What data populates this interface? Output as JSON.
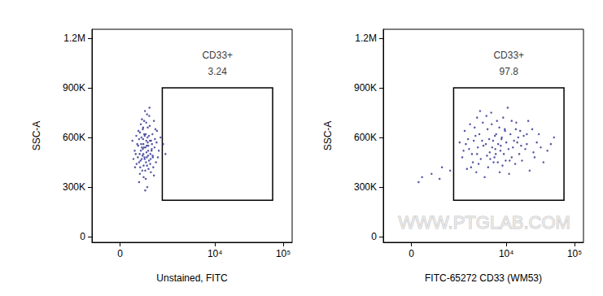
{
  "chart_data": [
    {
      "type": "scatter",
      "x_label": "Unstained, FITC",
      "y_label": "SSC-A",
      "log": "x",
      "color": "#2b2d8f",
      "xlim": [
        -900,
        135000
      ],
      "ylim": [
        -34000,
        1254000
      ],
      "xticks": [
        0,
        {
          "value": 10000,
          "label": "10⁴"
        },
        {
          "value": 100000,
          "label": "10⁵"
        }
      ],
      "yticks": [
        0,
        {
          "value": 300000,
          "label": "300K"
        },
        {
          "value": 600000,
          "label": "600K"
        },
        {
          "value": 900000,
          "label": "900K"
        },
        {
          "value": 1200000,
          "label": "1.2M"
        }
      ],
      "gate": {
        "x": [
          1600,
          70000
        ],
        "y": [
          220000,
          900000
        ],
        "label": "CD33+",
        "value": 3.24
      },
      "x": [
        620,
        840,
        710,
        930,
        560,
        1050,
        780,
        690,
        880,
        450,
        1200,
        760,
        980,
        640,
        820,
        530,
        1100,
        900,
        720,
        600,
        1300,
        850,
        470,
        1010,
        790,
        680,
        1150,
        560,
        930,
        740,
        1400,
        380,
        870,
        660,
        1020,
        590,
        800,
        960,
        720,
        500,
        1250,
        830,
        700,
        1080,
        620,
        910,
        770,
        540,
        1180,
        860,
        650,
        990,
        730,
        420,
        1500,
        810,
        690,
        1060,
        580,
        940,
        760,
        1350,
        480,
        880,
        630,
        1120,
        820,
        710,
        1000,
        560,
        900,
        1650,
        350,
        780,
        950,
        670,
        1220,
        850,
        740,
        610,
        1040,
        520,
        890,
        700,
        1800,
        1150,
        800,
        660,
        970,
        430,
        1280,
        750,
        590,
        1090,
        840
      ],
      "values": [
        520000,
        480000,
        560000,
        610000,
        450000,
        530000,
        400000,
        650000,
        570000,
        500000,
        590000,
        470000,
        440000,
        600000,
        690000,
        550000,
        480000,
        520000,
        360000,
        420000,
        640000,
        740000,
        610000,
        390000,
        540000,
        490000,
        700000,
        330000,
        460000,
        620000,
        520000,
        470000,
        600000,
        710000,
        580000,
        380000,
        350000,
        670000,
        430000,
        560000,
        450000,
        510000,
        590000,
        620000,
        680000,
        410000,
        760000,
        640000,
        540000,
        300000,
        470000,
        500000,
        540000,
        520000,
        600000,
        450000,
        530000,
        560000,
        500000,
        730000,
        610000,
        480000,
        440000,
        660000,
        560000,
        420000,
        580000,
        500000,
        470000,
        590000,
        550000,
        560000,
        580000,
        280000,
        780000,
        400000,
        650000,
        430000,
        700000,
        460000,
        520000,
        480000,
        490000,
        660000,
        500000,
        370000,
        620000,
        540000,
        580000,
        420000,
        570000,
        480000,
        630000,
        490000,
        550000
      ]
    },
    {
      "type": "scatter",
      "x_label": "FITC-65272 CD33 (WM53)",
      "y_label": "SSC-A",
      "log": "x",
      "color": "#2b2d8f",
      "xlim": [
        -900,
        135000
      ],
      "ylim": [
        -34000,
        1254000
      ],
      "xticks": [
        0,
        {
          "value": 10000,
          "label": "10⁴"
        },
        {
          "value": 100000,
          "label": "10⁵"
        }
      ],
      "yticks": [
        0,
        {
          "value": 300000,
          "label": "300K"
        },
        {
          "value": 600000,
          "label": "600K"
        },
        {
          "value": 900000,
          "label": "900K"
        },
        {
          "value": 1200000,
          "label": "1.2M"
        }
      ],
      "gate": {
        "x": [
          1600,
          70000
        ],
        "y": [
          220000,
          900000
        ],
        "label": "CD33+",
        "value": 97.8
      },
      "watermark": "WWW.PTGLAB.COM",
      "x": [
        300,
        600,
        1000,
        900,
        1400,
        200,
        5000,
        8200,
        3500,
        12000,
        6500,
        2800,
        15000,
        9500,
        4200,
        7300,
        20000,
        3000,
        11000,
        5600,
        25000,
        2400,
        8800,
        6000,
        14000,
        3800,
        30000,
        4800,
        10000,
        7000,
        17000,
        2200,
        9000,
        5300,
        22000,
        3300,
        12500,
        6800,
        40000,
        4500,
        8000,
        16000,
        2600,
        10500,
        5800,
        13000,
        3700,
        19000,
        7600,
        2900,
        50000,
        4000,
        9800,
        6200,
        28000,
        3200,
        11500,
        5100,
        15500,
        8500,
        2500,
        35000,
        4600,
        7900,
        21000,
        3600,
        13500,
        6400,
        9200,
        2700,
        18000,
        5400,
        24000,
        4100,
        10800,
        7100,
        3400,
        14500,
        6700,
        45000,
        2300,
        8600,
        5700,
        12000,
        3900,
        26000,
        7500,
        16500,
        4400,
        9600,
        3100,
        11200,
        6100,
        20000,
        2000,
        8300,
        5200,
        32000,
        3700,
        13800,
        6900
      ],
      "values": [
        360000,
        380000,
        420000,
        350000,
        400000,
        330000,
        560000,
        520000,
        610000,
        480000,
        450000,
        530000,
        600000,
        650000,
        470000,
        700000,
        560000,
        420000,
        380000,
        590000,
        510000,
        640000,
        430000,
        750000,
        690000,
        540000,
        620000,
        360000,
        570000,
        500000,
        460000,
        480000,
        720000,
        650000,
        400000,
        580000,
        540000,
        610000,
        520000,
        690000,
        390000,
        640000,
        410000,
        780000,
        470000,
        580000,
        500000,
        530000,
        560000,
        680000,
        600000,
        620000,
        460000,
        540000,
        570000,
        450000,
        620000,
        730000,
        500000,
        590000,
        560000,
        450000,
        550000,
        660000,
        700000,
        390000,
        440000,
        580000,
        500000,
        590000,
        610000,
        420000,
        650000,
        760000,
        530000,
        620000,
        660000,
        570000,
        480000,
        560000,
        520000,
        600000,
        510000,
        700000,
        440000,
        480000,
        450000,
        550000,
        580000,
        640000,
        500000,
        460000,
        680000,
        620000,
        570000,
        550000,
        490000,
        540000,
        720000,
        650000,
        530000
      ]
    }
  ]
}
